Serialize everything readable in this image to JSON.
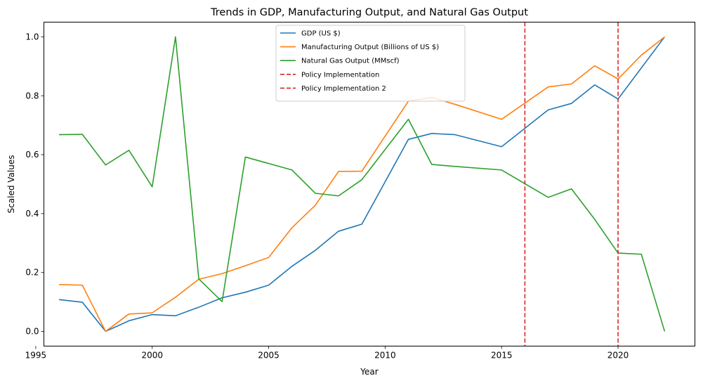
{
  "chart_data": {
    "type": "line",
    "title": "Trends in GDP, Manufacturing Output, and Natural Gas Output",
    "xlabel": "Year",
    "ylabel": "Scaled Values",
    "xlim": [
      1995.35,
      2023.3
    ],
    "ylim": [
      -0.05,
      1.05
    ],
    "xticks": [
      1995,
      2000,
      2005,
      2010,
      2015,
      2020
    ],
    "yticks": [
      0.0,
      0.2,
      0.4,
      0.6,
      0.8,
      1.0
    ],
    "grid": false,
    "legend_position": "upper center",
    "series": [
      {
        "name": "GDP (US $)",
        "color": "#1f77b4",
        "x": [
          1996,
          1997,
          1998,
          1999,
          2000,
          2001,
          2002,
          2003,
          2004,
          2005,
          2006,
          2007,
          2008,
          2009,
          2011,
          2012,
          2013,
          2015,
          2017,
          2018,
          2019,
          2020,
          2022
        ],
        "y": [
          0.108,
          0.099,
          0.0,
          0.036,
          0.057,
          0.053,
          0.082,
          0.114,
          0.133,
          0.157,
          0.221,
          0.275,
          0.34,
          0.364,
          0.652,
          0.672,
          0.668,
          0.627,
          0.752,
          0.774,
          0.837,
          0.789,
          1.0
        ]
      },
      {
        "name": "Manufacturing Output (Billions of US $)",
        "color": "#ff7f0e",
        "x": [
          1996,
          1997,
          1998,
          1999,
          2000,
          2001,
          2002,
          2003,
          2004,
          2005,
          2006,
          2007,
          2008,
          2009,
          2011,
          2012,
          2013,
          2015,
          2017,
          2018,
          2019,
          2020,
          2021,
          2022
        ],
        "y": [
          0.159,
          0.157,
          0.0,
          0.059,
          0.063,
          0.116,
          0.177,
          0.196,
          0.223,
          0.251,
          0.352,
          0.428,
          0.543,
          0.544,
          0.782,
          0.794,
          0.771,
          0.72,
          0.83,
          0.84,
          0.902,
          0.857,
          0.938,
          1.0
        ]
      },
      {
        "name": "Natural Gas Output (MMscf)",
        "color": "#2ca02c",
        "x": [
          1996,
          1997,
          1998,
          1999,
          2000,
          2001,
          2002,
          2003,
          2004,
          2005,
          2006,
          2007,
          2008,
          2009,
          2011,
          2012,
          2013,
          2015,
          2017,
          2018,
          2019,
          2020,
          2021,
          2022
        ],
        "y": [
          0.668,
          0.669,
          0.565,
          0.615,
          0.491,
          1.0,
          0.178,
          0.101,
          0.592,
          0.57,
          0.548,
          0.469,
          0.46,
          0.515,
          0.72,
          0.567,
          0.56,
          0.548,
          0.455,
          0.484,
          0.38,
          0.266,
          0.262,
          0.0
        ]
      }
    ],
    "vlines": [
      {
        "name": "Policy Implementation",
        "x": 2016,
        "color": "#d62728"
      },
      {
        "name": "Policy Implementation 2",
        "x": 2020,
        "color": "#d62728"
      }
    ]
  }
}
